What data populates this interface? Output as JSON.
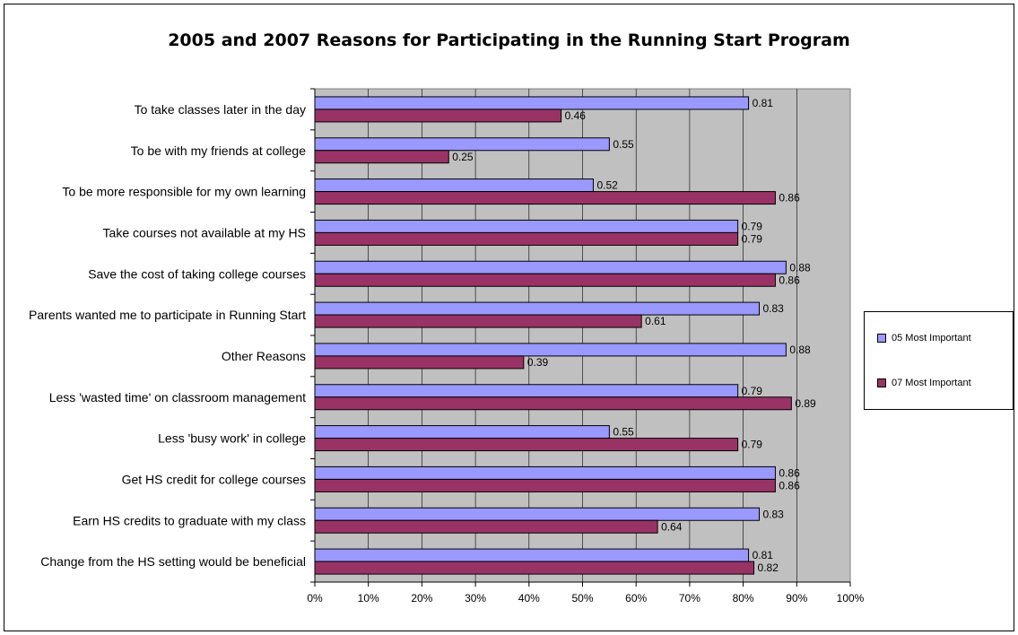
{
  "chart_data": {
    "type": "bar",
    "orientation": "horizontal",
    "title": "2005 and 2007 Reasons for Participating in the Running Start Program",
    "categories": [
      "To take classes later in the day",
      "To be with my friends at college",
      "To be more responsible for my own learning",
      "Take courses not available at my HS",
      "Save the cost of taking college courses",
      "Parents wanted me to participate in Running Start",
      "Other Reasons",
      "Less 'wasted time' on classroom management",
      "Less 'busy work' in college",
      "Get HS credit for college courses",
      "Earn HS credits to graduate with my class",
      "Change from the HS setting would be beneficial"
    ],
    "series": [
      {
        "name": "05 Most Important",
        "color": "#9999ff",
        "values": [
          0.81,
          0.55,
          0.52,
          0.79,
          0.88,
          0.83,
          0.88,
          0.79,
          0.55,
          0.86,
          0.83,
          0.81
        ],
        "labels": [
          "0.81",
          "0.55",
          "0.52",
          "0.79",
          "0.88",
          "0.83",
          "0.88",
          "0.79",
          "0.55",
          "0.86",
          "0.83",
          "0.81"
        ]
      },
      {
        "name": "07 Most Important",
        "color": "#993366",
        "values": [
          0.46,
          0.25,
          0.86,
          0.79,
          0.86,
          0.61,
          0.39,
          0.89,
          0.79,
          0.86,
          0.64,
          0.82
        ],
        "labels": [
          "0.46",
          "0.25",
          "0.86",
          "0.79",
          "0.86",
          "0.61",
          "0.39",
          "0.89",
          "0.79",
          "0.86",
          "0.64",
          "0.82"
        ]
      }
    ],
    "xlim": [
      0,
      1
    ],
    "xticks": [
      "0%",
      "10%",
      "20%",
      "30%",
      "40%",
      "50%",
      "60%",
      "70%",
      "80%",
      "90%",
      "100%"
    ],
    "grid": true,
    "plot_background": "#c0c0c0",
    "legend_position": "right"
  }
}
